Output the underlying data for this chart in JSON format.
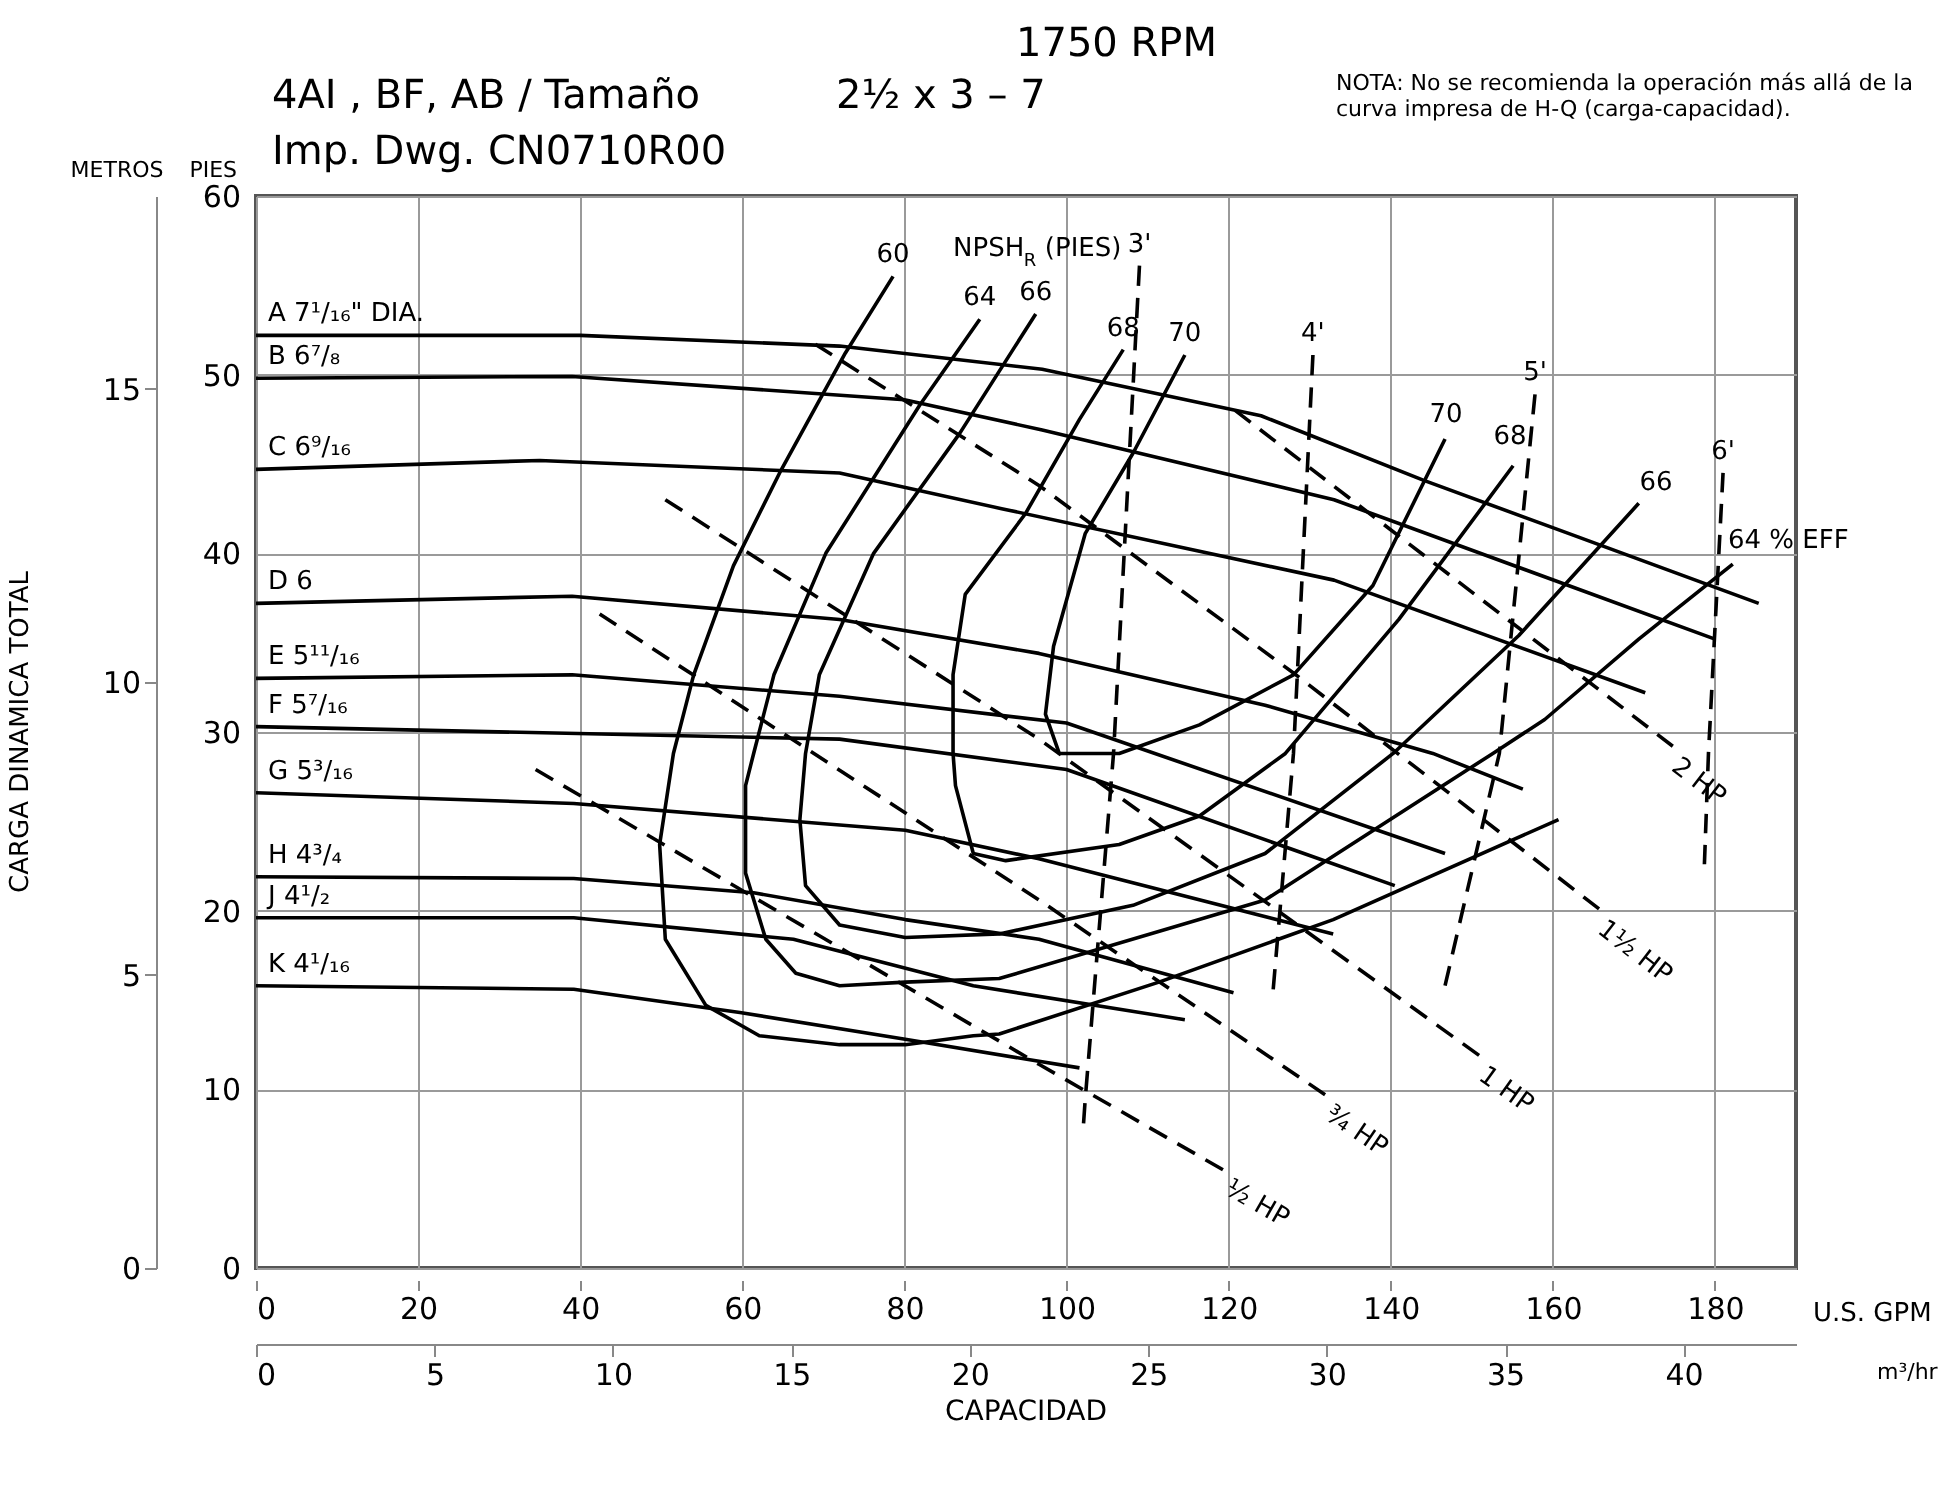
{
  "chart_data": {
    "type": "line",
    "xlabel": "U.S. GPM",
    "x2label": "m³/hr",
    "ylabel": "PIES",
    "y2label": "METROS",
    "xlim": [
      0,
      190
    ],
    "xticks": [
      0,
      20,
      40,
      60,
      80,
      100,
      120,
      140,
      160,
      180
    ],
    "x2lim": [
      0,
      43.15
    ],
    "x2ticks": [
      0,
      5,
      10,
      15,
      20,
      25,
      30,
      35,
      40
    ],
    "ylim": [
      0,
      60
    ],
    "yticks": [
      0,
      10,
      20,
      30,
      40,
      50,
      60
    ],
    "y2lim": [
      0,
      18.29
    ],
    "y2ticks": [
      0,
      5,
      10,
      15
    ],
    "grid": true,
    "annotations": [
      "1750 RPM",
      "4AI , BF, AB / Tamaño",
      "2½ x 3 – 7",
      "Imp. Dwg. CN0710R00",
      "NOTA:   No se recomienda la operación más allá de la curva impresa de H-Q (carga-capacidad).",
      "CARGA DINAMICA TOTAL",
      "CAPACIDAD",
      "70",
      "68",
      "66",
      "64 % EFF",
      {
        "text": "NPSH$_{R}$ (PIES)",
        "x": 109.0,
        "y": 56.1
      }
    ],
    "series": [
      {
        "name": "A 7¹/₁₆\" DIA.",
        "color": "#000000",
        "line_style": "solid",
        "x": [
          0,
          40,
          72,
          97,
          124,
          144,
          162,
          185.4
        ],
        "values": [
          52.2,
          52.2,
          51.6,
          50.3,
          47.7,
          44.1,
          41.1,
          37.2
        ]
      },
      {
        "name": "B 6⁷/₈",
        "color": "#000000",
        "line_style": "solid",
        "x": [
          0,
          39,
          80,
          97,
          133,
          180
        ],
        "values": [
          49.8,
          49.9,
          48.6,
          46.9,
          43.0,
          35.2
        ]
      },
      {
        "name": "C 6⁹/₁₆",
        "color": "#000000",
        "line_style": "solid",
        "x": [
          0,
          35,
          72,
          92,
          133,
          171.4
        ],
        "values": [
          44.7,
          45.2,
          44.5,
          42.5,
          38.5,
          32.2
        ]
      },
      {
        "name": "D 6",
        "color": "#000000",
        "line_style": "solid",
        "x": [
          0,
          39,
          72,
          96.6,
          124.5,
          145.2,
          156.3
        ],
        "values": [
          37.2,
          37.6,
          36.3,
          34.4,
          31.5,
          28.8,
          26.8
        ]
      },
      {
        "name": "E 5¹¹/₁₆",
        "color": "#000000",
        "line_style": "solid",
        "x": [
          0,
          39,
          72,
          100,
          146.7
        ],
        "values": [
          33.0,
          33.2,
          32.0,
          30.5,
          23.2
        ]
      },
      {
        "name": "F 5⁷/₁₆",
        "color": "#000000",
        "line_style": "solid",
        "x": [
          0,
          72,
          100,
          140.5
        ],
        "values": [
          30.3,
          29.6,
          27.9,
          21.4
        ]
      },
      {
        "name": "G 5³/₁₆",
        "color": "#000000",
        "line_style": "solid",
        "x": [
          0,
          39.2,
          80.1,
          96.6,
          132.9
        ],
        "values": [
          26.6,
          26.0,
          24.5,
          22.9,
          18.7
        ]
      },
      {
        "name": "H 4³/₄",
        "color": "#000000",
        "line_style": "solid",
        "x": [
          0,
          39.2,
          61.4,
          80.1,
          96.6,
          120.6
        ],
        "values": [
          21.9,
          21.8,
          21.0,
          19.5,
          18.4,
          15.4
        ]
      },
      {
        "name": "J 4¹/₂",
        "color": "#000000",
        "line_style": "solid",
        "x": [
          0,
          39.2,
          66.3,
          88.5,
          114.6
        ],
        "values": [
          19.6,
          19.6,
          18.4,
          15.8,
          13.9
        ]
      },
      {
        "name": "K 4¹/₁₆",
        "color": "#000000",
        "line_style": "solid",
        "x": [
          0,
          39.2,
          59.7,
          80.1,
          101.6
        ],
        "values": [
          15.8,
          15.6,
          14.3,
          12.8,
          11.2
        ]
      },
      {
        "name": "60",
        "color": "#000000",
        "line_style": "solid",
        "x": [
          78.6,
          72.7,
          64.6,
          58.9,
          54.0,
          51.5,
          49.8,
          50.5,
          55.5,
          62.1,
          72.0,
          80.1,
          88.5,
          91.7,
          111.4,
          132.9,
          160.7
        ],
        "values": [
          55.5,
          51.2,
          44.5,
          39.3,
          33.2,
          28.8,
          23.7,
          18.4,
          14.7,
          13.0,
          12.5,
          12.5,
          13.0,
          13.1,
          16.0,
          19.5,
          25.1
        ]
      },
      {
        "name": "64",
        "color": "#000000",
        "line_style": "solid",
        "x": [
          89.3,
          81.9,
          70.3,
          63.9,
          61.4,
          60.4,
          60.4,
          62.9,
          66.6,
          72.0,
          80.1,
          91.7,
          124.5,
          152.6,
          159.0,
          170.6,
          182.2
        ],
        "values": [
          53.1,
          48.3,
          40.0,
          33.2,
          28.8,
          27.0,
          22.1,
          18.4,
          16.5,
          15.8,
          16.0,
          16.2,
          20.6,
          28.8,
          30.7,
          35.2,
          39.4
        ]
      },
      {
        "name": "66",
        "color": "#000000",
        "line_style": "solid",
        "x": [
          96.2,
          86.8,
          76.2,
          69.5,
          67.8,
          67.1,
          67.8,
          72.0,
          80.1,
          91.7,
          108.2,
          124.5,
          140.3,
          155.8,
          170.6
        ],
        "values": [
          53.4,
          46.7,
          40.0,
          33.2,
          28.8,
          25.1,
          21.4,
          19.2,
          18.5,
          18.7,
          20.3,
          23.2,
          28.8,
          35.4,
          42.8
        ]
      },
      {
        "name": "68",
        "color": "#000000",
        "line_style": "solid",
        "x": [
          107.0,
          101.6,
          94.9,
          87.5,
          86.0,
          86.0,
          86.3,
          88.5,
          92.5,
          106.5,
          116.4,
          127.0,
          141.0,
          155.1
        ],
        "values": [
          51.4,
          47.5,
          42.2,
          37.7,
          33.2,
          28.8,
          27.0,
          23.2,
          22.8,
          23.7,
          25.3,
          28.8,
          36.3,
          44.9
        ]
      },
      {
        "name": "70",
        "color": "#000000",
        "line_style": "solid",
        "x": [
          114.6,
          108.2,
          102.3,
          98.4,
          97.4,
          99.1,
          106.5,
          116.4,
          128.0,
          137.8,
          146.7
        ],
        "values": [
          51.1,
          45.6,
          41.1,
          34.8,
          31.0,
          28.8,
          28.8,
          30.4,
          33.2,
          38.2,
          46.4
        ]
      },
      {
        "name": "3'",
        "color": "#000000",
        "line_style": "dashed",
        "x": [
          109.0,
          105.8,
          102.3,
          102.1
        ],
        "values": [
          56.1,
          28.8,
          9.4,
          8.1
        ]
      },
      {
        "name": "4'",
        "color": "#000000",
        "line_style": "dashed",
        "x": [
          130.4,
          128.0,
          125.5
        ],
        "values": [
          51.1,
          28.8,
          15.6
        ]
      },
      {
        "name": "5'",
        "color": "#000000",
        "line_style": "dashed",
        "x": [
          157.8,
          153.4,
          146.7
        ],
        "values": [
          48.9,
          28.8,
          15.8
        ]
      },
      {
        "name": "6'",
        "color": "#000000",
        "line_style": "dashed",
        "x": [
          181.0,
          179.2,
          178.7
        ],
        "values": [
          44.5,
          28.8,
          22.6
        ]
      },
      {
        "name": "2 HP",
        "color": "#000000",
        "line_style": "dashed",
        "x": [
          120.8,
          174.8
        ],
        "values": [
          48.0,
          29.2
        ]
      },
      {
        "name": "1½ HP",
        "color": "#000000",
        "line_style": "dashed",
        "x": [
          69.0,
          96.6,
          128.0,
          165.7
        ],
        "values": [
          51.7,
          43.8,
          33.3,
          20.1
        ]
      },
      {
        "name": "1 HP",
        "color": "#000000",
        "line_style": "dashed",
        "x": [
          50.5,
          96.6,
          150.9
        ],
        "values": [
          43.0,
          29.6,
          11.9
        ]
      },
      {
        "name": "¾ HP",
        "color": "#000000",
        "line_style": "dashed",
        "x": [
          42.4,
          96.6,
          131.9
        ],
        "values": [
          36.6,
          20.6,
          9.7
        ]
      },
      {
        "name": "½ HP",
        "color": "#000000",
        "line_style": "dashed",
        "x": [
          34.5,
          96.6,
          119.3
        ],
        "values": [
          27.9,
          11.4,
          5.5
        ]
      }
    ]
  }
}
